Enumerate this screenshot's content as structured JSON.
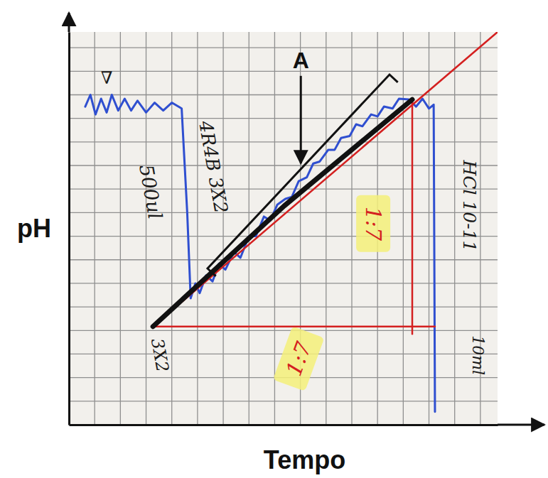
{
  "chart_data": {
    "type": "line",
    "x_label": "Tempo",
    "y_label": "pH",
    "xlim": [
      0,
      100
    ],
    "ylim": [
      0,
      100
    ],
    "xticks": [
      0,
      6,
      12,
      18,
      24,
      30,
      36,
      42,
      48,
      54,
      60,
      66,
      72,
      78,
      84,
      90,
      96
    ],
    "yticks": [
      0,
      6,
      12,
      18,
      24,
      30,
      36,
      42,
      48,
      54,
      60,
      66,
      72,
      78,
      84,
      90,
      96
    ],
    "grid": true,
    "tick_labels": false,
    "series": [
      {
        "color": "#2f4fd0",
        "line_style": "solid",
        "x": [
          3.8,
          5,
          6.2,
          7.5,
          8.8,
          10,
          11.5,
          13,
          14.5,
          16,
          18,
          20,
          22,
          24,
          26.3,
          27.6,
          28.4,
          29.5,
          30.5,
          32,
          33.5,
          35,
          36.5,
          38.5,
          40,
          42,
          43.6,
          45.5,
          47,
          48.6,
          50.5,
          52,
          53.6,
          55.5,
          57,
          58.5,
          60.5,
          62,
          63.5,
          65.5,
          67,
          68.5,
          70.5,
          72,
          73.5,
          75.5,
          77,
          79.3,
          81,
          82.5,
          84,
          85.1,
          85.4
        ],
        "values": [
          81,
          84,
          79,
          83,
          79.5,
          84,
          80,
          83,
          80,
          82.5,
          79.5,
          82,
          80,
          82,
          80.5,
          53.9,
          32.2,
          36,
          33.5,
          38,
          36.5,
          41,
          39.5,
          44,
          42.5,
          48,
          48,
          53,
          52,
          56,
          57.5,
          58,
          62,
          63,
          66.5,
          67,
          70,
          70,
          73,
          73.5,
          76.5,
          76,
          79,
          78.5,
          81,
          80.5,
          83,
          82.8,
          81,
          83,
          80.5,
          81.5,
          3.3
        ]
      },
      {
        "color": "#d42020",
        "line_style": "solid",
        "x": [
          19.6,
          100
        ],
        "values": [
          25,
          100
        ]
      },
      {
        "color": "#d42020",
        "line_style": "solid",
        "x": [
          19.6,
          85.4
        ],
        "values": [
          25,
          25
        ]
      },
      {
        "color": "#d42020",
        "line_style": "solid",
        "x": [
          80.1,
          80.1
        ],
        "values": [
          23.1,
          82.8
        ]
      },
      {
        "color": "#111111",
        "line_style": "solid",
        "x": [
          19.6,
          50.2,
          80.1
        ],
        "values": [
          25,
          55.7,
          82.8
        ]
      }
    ],
    "annotations": [
      {
        "text": "A",
        "x": 54.1,
        "y": 92.8,
        "color": "#111111"
      },
      {
        "text": "4R4B 3X2",
        "x": 33.7,
        "y": 65.6,
        "color": "#1a1a1a"
      },
      {
        "text": "500ul",
        "x": 19.1,
        "y": 59.3,
        "color": "#1a1a1a"
      },
      {
        "text": "3X2",
        "x": 21.2,
        "y": 17.7,
        "color": "#1a1a1a"
      },
      {
        "text": "HCl 10-11",
        "x": 93.4,
        "y": 55.7,
        "color": "#1a1a1a"
      },
      {
        "text": "10ml",
        "x": 95.4,
        "y": 17.7,
        "color": "#1a1a1a"
      },
      {
        "text": "1:7",
        "x": 71,
        "y": 51.2,
        "color": "#d42020"
      },
      {
        "text": "1:7",
        "x": 53.6,
        "y": 16.8,
        "color": "#d42020"
      },
      {
        "text": "∇",
        "x": 8.8,
        "y": 88.2,
        "color": "#1a1a1a"
      }
    ]
  }
}
